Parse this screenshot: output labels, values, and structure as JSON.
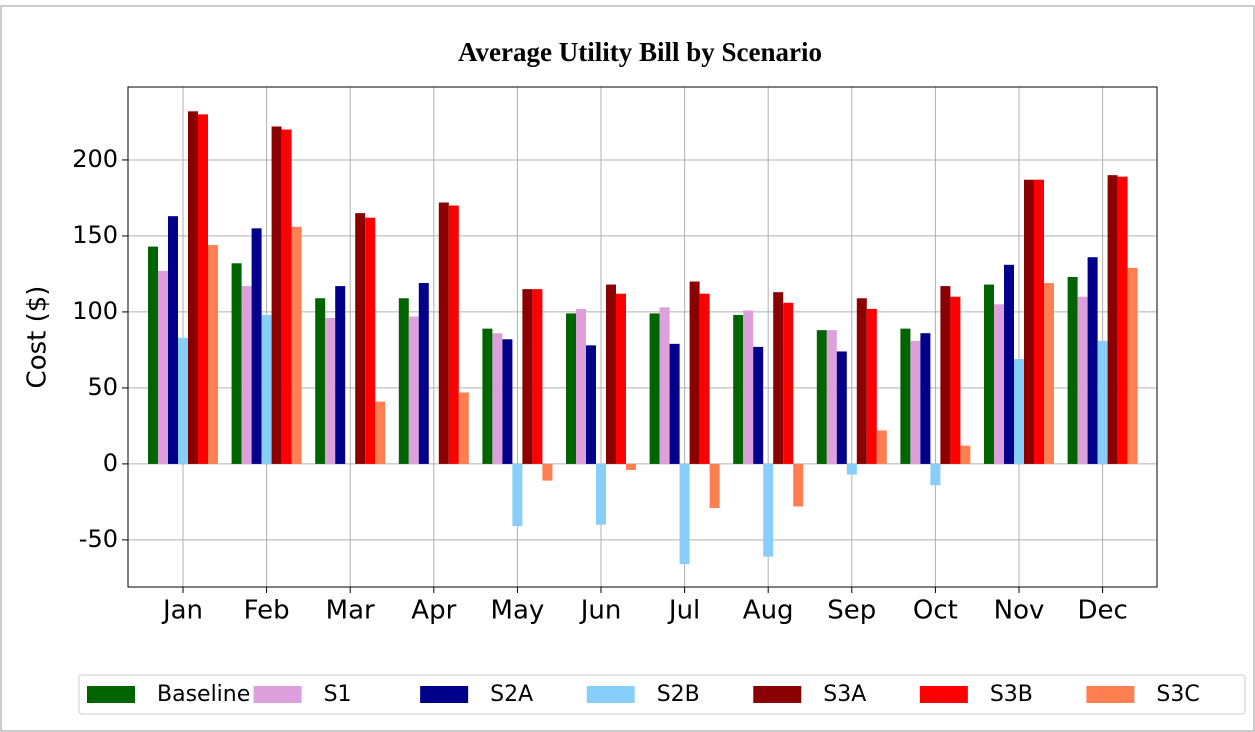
{
  "chart_data": {
    "type": "bar",
    "title": "Average Utility Bill by Scenario",
    "y_label": "Cost ($)",
    "categories": [
      "Jan",
      "Feb",
      "Mar",
      "Apr",
      "May",
      "Jun",
      "Jul",
      "Aug",
      "Sep",
      "Oct",
      "Nov",
      "Dec"
    ],
    "series": [
      {
        "name": "Baseline",
        "color": "#006400",
        "values": [
          143,
          132,
          109,
          109,
          89,
          99,
          99,
          98,
          88,
          89,
          118,
          123
        ]
      },
      {
        "name": "S1",
        "color": "#dda0dd",
        "values": [
          127,
          117,
          96,
          97,
          86,
          102,
          103,
          101,
          88,
          81,
          105,
          110
        ]
      },
      {
        "name": "S2A",
        "color": "#00008b",
        "values": [
          163,
          155,
          117,
          119,
          82,
          78,
          79,
          77,
          74,
          86,
          131,
          136
        ]
      },
      {
        "name": "S2B",
        "color": "#87cefa",
        "values": [
          83,
          98,
          0,
          0,
          -41,
          -40,
          -66,
          -61,
          -7,
          -14,
          69,
          81
        ]
      },
      {
        "name": "S3A",
        "color": "#8b0000",
        "values": [
          232,
          222,
          165,
          172,
          115,
          118,
          120,
          113,
          109,
          117,
          187,
          190
        ]
      },
      {
        "name": "S3B",
        "color": "#ff0000",
        "values": [
          230,
          220,
          162,
          170,
          115,
          112,
          112,
          106,
          102,
          110,
          187,
          189
        ]
      },
      {
        "name": "S3C",
        "color": "#ff7f50",
        "values": [
          144,
          156,
          41,
          47,
          -11,
          -4,
          -29,
          -28,
          22,
          12,
          119,
          129
        ]
      }
    ],
    "ylim": [
      -81,
      248
    ],
    "yticks": [
      -50,
      0,
      50,
      100,
      150,
      200
    ],
    "grid": true,
    "legend": "bottom"
  }
}
